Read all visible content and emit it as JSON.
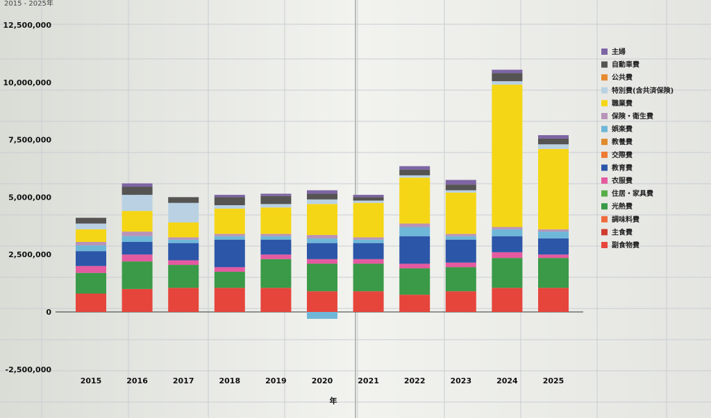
{
  "header_fragment": "2015 - 2025年",
  "chart_data": {
    "type": "bar",
    "stacked": true,
    "title": "",
    "xlabel": "年",
    "ylabel": "",
    "categories": [
      "2015",
      "2016",
      "2017",
      "2018",
      "2019",
      "2020",
      "2021",
      "2022",
      "2023",
      "2024",
      "2025"
    ],
    "ylim": [
      -2500000,
      12500000
    ],
    "yticks": [
      -2500000,
      0,
      2500000,
      5000000,
      7500000,
      10000000,
      12500000
    ],
    "ytick_labels": [
      "-2,500,000",
      "0",
      "2,500,000",
      "5,000,000",
      "7,500,000",
      "10,000,000",
      "12,500,000"
    ],
    "grid": false,
    "legend_position": "right",
    "legend_title": "主婦",
    "series": [
      {
        "name": "副食物費",
        "color": "#e6453c",
        "values": [
          800000,
          1000000,
          1050000,
          1050000,
          1050000,
          900000,
          900000,
          750000,
          900000,
          1050000,
          1050000
        ]
      },
      {
        "name": "主食費",
        "color": "#cf3b2e",
        "values": [
          0,
          0,
          0,
          0,
          0,
          0,
          0,
          0,
          0,
          0,
          0
        ]
      },
      {
        "name": "調味料費",
        "color": "#ef6b3c",
        "values": [
          0,
          0,
          0,
          0,
          0,
          0,
          0,
          0,
          0,
          0,
          0
        ]
      },
      {
        "name": "光熱費",
        "color": "#3a9a47",
        "values": [
          900000,
          1200000,
          1000000,
          700000,
          1250000,
          1200000,
          1200000,
          1150000,
          1050000,
          1300000,
          1300000
        ]
      },
      {
        "name": "住居・家具費",
        "color": "#57ad48",
        "values": [
          0,
          0,
          0,
          0,
          0,
          0,
          0,
          0,
          0,
          0,
          0
        ]
      },
      {
        "name": "衣服費",
        "color": "#e45aa0",
        "values": [
          300000,
          300000,
          200000,
          200000,
          200000,
          200000,
          200000,
          200000,
          200000,
          250000,
          150000
        ]
      },
      {
        "name": "教育費",
        "color": "#2c56a8",
        "values": [
          650000,
          550000,
          750000,
          1200000,
          650000,
          700000,
          700000,
          1200000,
          1000000,
          700000,
          700000
        ]
      },
      {
        "name": "交際費",
        "color": "#ee7a33",
        "values": [
          0,
          0,
          0,
          0,
          0,
          0,
          0,
          0,
          0,
          0,
          0
        ]
      },
      {
        "name": "教養費",
        "color": "#e08a2c",
        "values": [
          0,
          0,
          0,
          0,
          0,
          0,
          0,
          0,
          0,
          0,
          0
        ]
      },
      {
        "name": "娯楽費",
        "color": "#6fb7d8",
        "values": [
          250000,
          250000,
          150000,
          150000,
          150000,
          200000,
          150000,
          400000,
          150000,
          300000,
          300000
        ]
      },
      {
        "name": "保険・衛生費",
        "color": "#b894b8",
        "values": [
          150000,
          200000,
          100000,
          100000,
          100000,
          150000,
          100000,
          150000,
          100000,
          100000,
          100000
        ]
      },
      {
        "name": "職業費",
        "color": "#f5d616",
        "values": [
          550000,
          900000,
          650000,
          1100000,
          1150000,
          1350000,
          1500000,
          2000000,
          1800000,
          6200000,
          3500000
        ]
      },
      {
        "name": "特別費(含共済保険)",
        "color": "#b9d1e3",
        "values": [
          250000,
          700000,
          850000,
          150000,
          150000,
          200000,
          100000,
          100000,
          100000,
          150000,
          200000
        ]
      },
      {
        "name": "公共費",
        "color": "#e78a31",
        "values": [
          0,
          0,
          0,
          0,
          0,
          0,
          0,
          0,
          0,
          0,
          0
        ]
      },
      {
        "name": "自動車費",
        "color": "#555452",
        "values": [
          250000,
          350000,
          250000,
          350000,
          350000,
          250000,
          150000,
          250000,
          250000,
          350000,
          250000
        ]
      },
      {
        "name": "主婦",
        "color": "#7d65a4",
        "values": [
          0,
          150000,
          0,
          100000,
          100000,
          150000,
          100000,
          150000,
          200000,
          150000,
          150000
        ]
      }
    ],
    "negative_values": [
      {
        "category": "2020",
        "value": -300000,
        "color": "#6fb7d8"
      }
    ]
  }
}
